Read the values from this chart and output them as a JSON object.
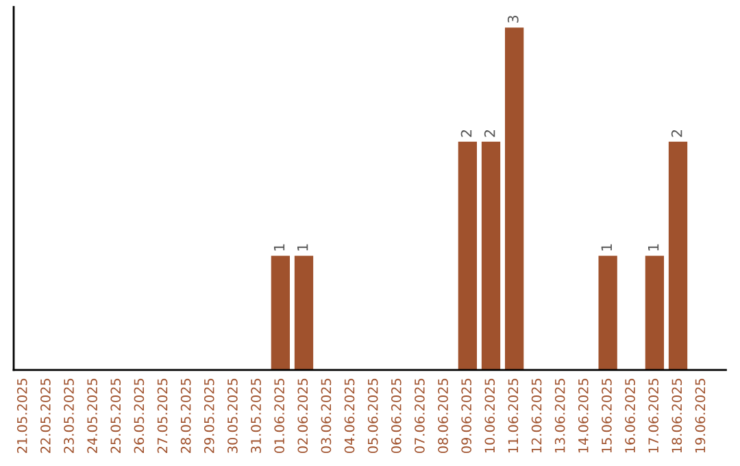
{
  "chart_data": {
    "type": "bar",
    "categories": [
      "21.05.2025",
      "22.05.2025",
      "23.05.2025",
      "24.05.2025",
      "25.05.2025",
      "26.05.2025",
      "27.05.2025",
      "28.05.2025",
      "29.05.2025",
      "30.05.2025",
      "31.05.2025",
      "01.06.2025",
      "02.06.2025",
      "03.06.2025",
      "04.06.2025",
      "05.06.2025",
      "06.06.2025",
      "07.06.2025",
      "08.06.2025",
      "09.06.2025",
      "10.06.2025",
      "11.06.2025",
      "12.06.2025",
      "13.06.2025",
      "14.06.2025",
      "15.06.2025",
      "16.06.2025",
      "17.06.2025",
      "18.06.2025",
      "19.06.2025"
    ],
    "values": [
      0,
      0,
      0,
      0,
      0,
      0,
      0,
      0,
      0,
      0,
      0,
      1,
      1,
      0,
      0,
      0,
      0,
      0,
      0,
      2,
      2,
      3,
      0,
      0,
      0,
      1,
      0,
      1,
      2,
      0
    ],
    "value_labels": [
      null,
      null,
      null,
      null,
      null,
      null,
      null,
      null,
      null,
      null,
      null,
      "1",
      "1",
      null,
      null,
      null,
      null,
      null,
      null,
      "2",
      "2",
      "3",
      null,
      null,
      null,
      "1",
      null,
      "1",
      "2",
      null
    ],
    "color": "#a0522d",
    "tick_labels": "x",
    "grid": false,
    "legend": false
  }
}
